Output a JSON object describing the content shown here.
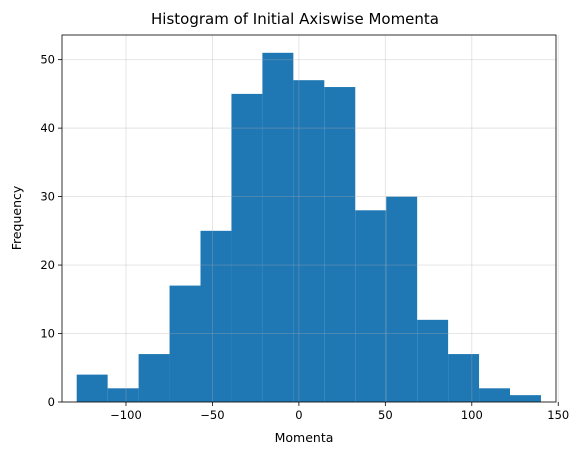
{
  "chart_data": {
    "type": "bar",
    "subtype": "histogram",
    "title": "Histogram of Initial Axiswise Momenta",
    "xlabel": "Momenta",
    "ylabel": "Frequency",
    "bin_edges": [
      -128.5,
      -110.6,
      -92.7,
      -74.8,
      -56.9,
      -39.0,
      -21.1,
      -3.2,
      14.7,
      32.6,
      50.5,
      68.4,
      86.3,
      104.2,
      122.1,
      140.0
    ],
    "counts": [
      4,
      2,
      7,
      17,
      25,
      45,
      51,
      47,
      46,
      28,
      30,
      12,
      7,
      2,
      1
    ],
    "xlim": [
      -137,
      148.7
    ],
    "ylim": [
      0,
      53.6
    ],
    "xticks": [
      -100,
      -50,
      0,
      50,
      100,
      150
    ],
    "xtick_labels": [
      "−100",
      "−50",
      "0",
      "50",
      "100",
      "150"
    ],
    "yticks": [
      0,
      10,
      20,
      30,
      40,
      50
    ],
    "ytick_labels": [
      "0",
      "10",
      "20",
      "30",
      "40",
      "50"
    ],
    "grid": true,
    "bar_color": "#1f77b4",
    "grid_color": "#b0b0b0"
  }
}
